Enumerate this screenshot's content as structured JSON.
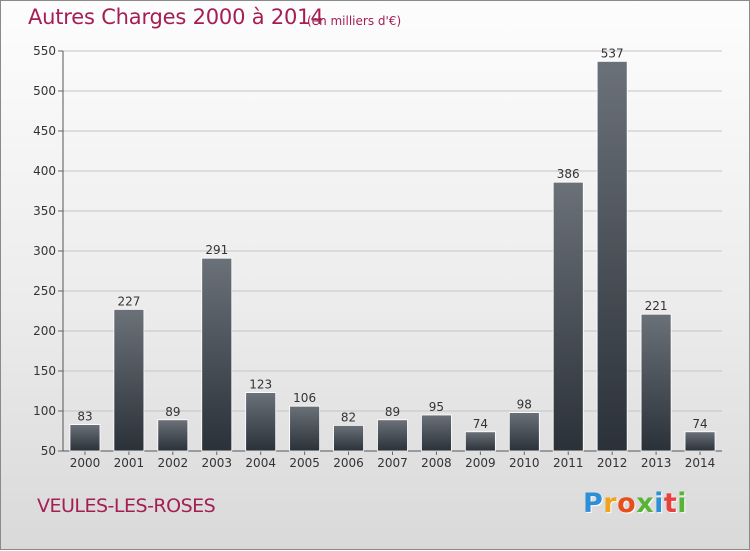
{
  "header": {
    "title": "Autres Charges 2000 à 2014",
    "subtitle": "(en milliers d'€)"
  },
  "footer": {
    "commune": "VEULES-LES-ROSES",
    "logo_letters": [
      "P",
      "r",
      "o",
      "x",
      "i",
      "t",
      "i"
    ],
    "logo_colors": [
      "#2e8fd6",
      "#f0a31c",
      "#e84d1c",
      "#58b435",
      "#2e8fd6",
      "#e8403c",
      "#58b435"
    ]
  },
  "colors": {
    "title": "#a51e53",
    "bar_top": "#6b7178",
    "bar_bottom": "#2b3138"
  },
  "chart_data": {
    "type": "bar",
    "title": "Autres Charges 2000 à 2014",
    "subtitle": "(en milliers d'€)",
    "categories": [
      "2000",
      "2001",
      "2002",
      "2003",
      "2004",
      "2005",
      "2006",
      "2007",
      "2008",
      "2009",
      "2010",
      "2011",
      "2012",
      "2013",
      "2014"
    ],
    "values": [
      83,
      227,
      89,
      291,
      123,
      106,
      82,
      89,
      95,
      74,
      98,
      386,
      537,
      221,
      74
    ],
    "yticks": [
      50,
      100,
      150,
      200,
      250,
      300,
      350,
      400,
      450,
      500,
      550
    ],
    "ylim": [
      50,
      550
    ],
    "grid": true
  }
}
